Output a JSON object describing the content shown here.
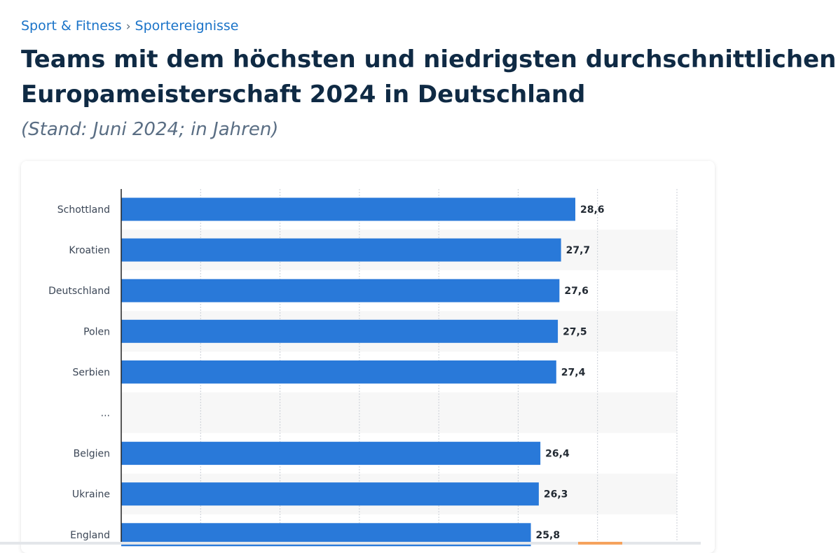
{
  "breadcrumb": {
    "items": [
      "Sport & Fitness",
      "Sportereignisse"
    ],
    "separator": "›"
  },
  "header": {
    "title_line1": "Teams mit dem höchsten und niedrigsten durchschnittlichen",
    "title_line2": "Europameisterschaft 2024 in Deutschland",
    "subtitle": "(Stand: Juni 2024; in Jahren)"
  },
  "colors": {
    "bar": "#2979d9",
    "grid": "#c9ced5",
    "stripe": "#f7f7f7",
    "axis": "#222222"
  },
  "chart_data": {
    "type": "bar",
    "orientation": "horizontal",
    "title": "Teams mit dem höchsten und niedrigsten durchschnittlichen ... Europameisterschaft 2024 in Deutschland",
    "subtitle": "(Stand: Juni 2024; in Jahren)",
    "categories": [
      "Schottland",
      "Kroatien",
      "Deutschland",
      "Polen",
      "Serbien",
      "...",
      "Belgien",
      "Ukraine",
      "England"
    ],
    "values": [
      28.6,
      27.7,
      27.6,
      27.5,
      27.4,
      null,
      26.4,
      26.3,
      25.8
    ],
    "value_labels": [
      "28,6",
      "27,7",
      "27,6",
      "27,5",
      "27,4",
      "",
      "26,4",
      "26,3",
      "25,8"
    ],
    "xlim": [
      0,
      35
    ],
    "grid": true,
    "xlabel": "",
    "ylabel": ""
  }
}
